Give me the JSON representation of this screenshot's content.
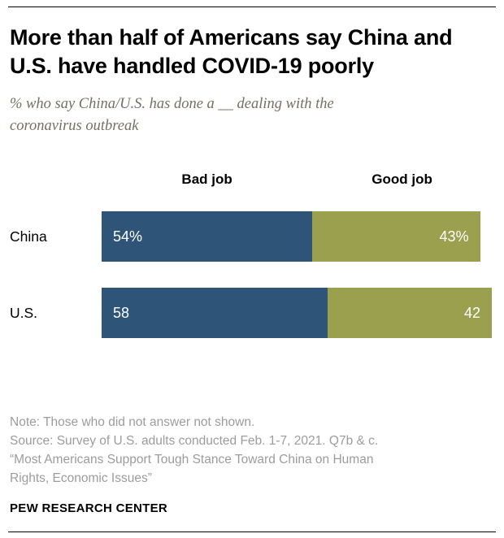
{
  "header": {
    "title": "More than half of Americans say China and U.S. have handled COVID-19 poorly",
    "subtitle": "% who say China/U.S. has done a __ dealing with the coronavirus outbreak"
  },
  "chart_data": {
    "type": "bar",
    "orientation": "horizontal",
    "stacked": true,
    "categories": [
      "China",
      "U.S."
    ],
    "series": [
      {
        "name": "Bad job",
        "color": "#2e5578",
        "values": [
          54,
          58
        ],
        "labels": [
          "54%",
          "58"
        ]
      },
      {
        "name": "Good job",
        "color": "#9aa04e",
        "values": [
          43,
          42
        ],
        "labels": [
          "43%",
          "42"
        ]
      }
    ],
    "xlim": [
      0,
      100
    ],
    "value_labels": "inside",
    "grid": false,
    "legend_position": "top"
  },
  "notes": {
    "lines": [
      "Note: Those who did not answer not shown.",
      "Source: Survey of U.S. adults conducted Feb. 1-7, 2021. Q7b & c.",
      "“Most Americans Support Tough Stance Toward China on Human",
      "Rights, Economic Issues”"
    ]
  },
  "footer": {
    "wordmark": "PEW RESEARCH CENTER"
  }
}
